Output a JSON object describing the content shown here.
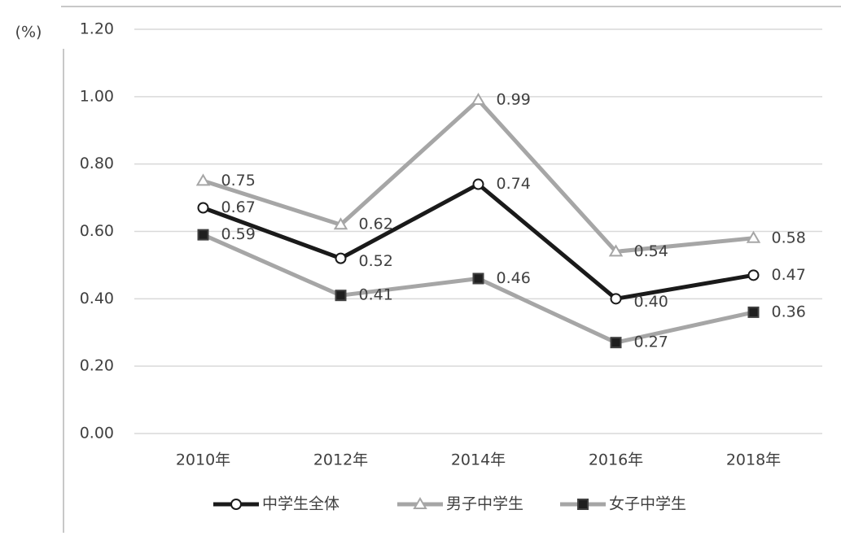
{
  "chart_data": {
    "type": "line",
    "y_label": "(%)",
    "categories": [
      "2010年",
      "2012年",
      "2014年",
      "2016年",
      "2018年"
    ],
    "series": [
      {
        "name": "中学生全体",
        "color": "#1a1a1a",
        "marker": "circle",
        "marker_fill": "#ffffff",
        "values": [
          0.67,
          0.52,
          0.74,
          0.4,
          0.47
        ],
        "value_labels": [
          "0.67",
          "0.52",
          "0.74",
          "0.40",
          "0.47"
        ]
      },
      {
        "name": "男子中学生",
        "color": "#a6a6a6",
        "marker": "triangle",
        "marker_fill": "#ffffff",
        "values": [
          0.75,
          0.62,
          0.99,
          0.54,
          0.58
        ],
        "value_labels": [
          "0.75",
          "0.62",
          "0.99",
          "0.54",
          "0.58"
        ]
      },
      {
        "name": "女子中学生",
        "color": "#a6a6a6",
        "marker": "square",
        "marker_fill": "#1f1f1f",
        "values": [
          0.59,
          0.41,
          0.46,
          0.27,
          0.36
        ],
        "value_labels": [
          "0.59",
          "0.41",
          "0.46",
          "0.27",
          "0.36"
        ]
      }
    ],
    "ylim": [
      0,
      1.2
    ],
    "yticks": [
      {
        "value": 0,
        "label": "0.00"
      },
      {
        "value": 0.2,
        "label": "0.20"
      },
      {
        "value": 0.4,
        "label": "0.40"
      },
      {
        "value": 0.6,
        "label": "0.60"
      },
      {
        "value": 0.8,
        "label": "0.80"
      },
      {
        "value": 1,
        "label": "1.00"
      },
      {
        "value": 1.2,
        "label": "1.20"
      }
    ],
    "grid": true,
    "legend": "bottom"
  }
}
